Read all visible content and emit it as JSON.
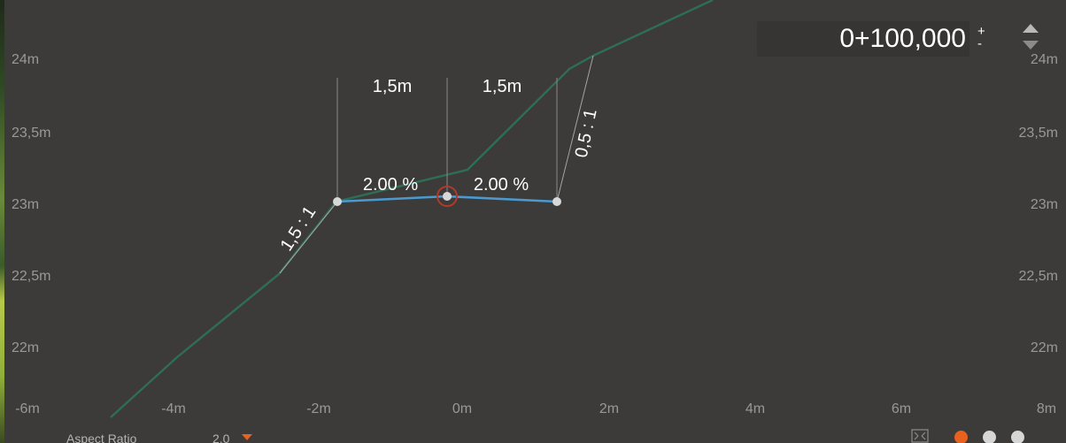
{
  "station": {
    "value": "0+100,000",
    "plus": "+",
    "minus": "-"
  },
  "axis": {
    "y_left": [
      "24m",
      "23,5m",
      "23m",
      "22,5m",
      "22m"
    ],
    "y_right": [
      "24m",
      "23,5m",
      "23m",
      "22,5m",
      "22m"
    ],
    "x": [
      "-6m",
      "-4m",
      "-2m",
      "0m",
      "2m",
      "4m",
      "6m",
      "8m"
    ]
  },
  "annotations": {
    "width_left": "1,5m",
    "width_right": "1,5m",
    "slope_left": "1,5 : 1",
    "slope_right": "0,5 : 1",
    "grade_left": "2.00 %",
    "grade_right": "2.00 %"
  },
  "footer": {
    "aspect_label": "Aspect Ratio",
    "aspect_value": "2.0"
  },
  "page_dots": {
    "count": 3,
    "active": 0
  },
  "colors": {
    "background": "#3c3b3a",
    "terrain": "#2e6e57",
    "design": "#4a9ad0",
    "accent": "#e8621e",
    "guide": "#9a9896"
  },
  "icons": [
    "chevron-up-icon",
    "chevron-down-icon",
    "fullscreen-icon",
    "caret-down-icon"
  ]
}
